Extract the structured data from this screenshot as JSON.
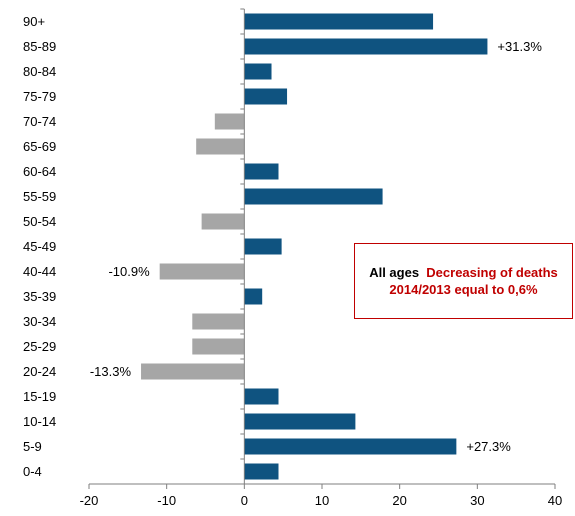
{
  "chart_data": {
    "type": "bar",
    "orientation": "horizontal",
    "categories": [
      "90+",
      "85-89",
      "80-84",
      "75-79",
      "70-74",
      "65-69",
      "60-64",
      "55-59",
      "50-54",
      "45-49",
      "40-44",
      "35-39",
      "30-34",
      "25-29",
      "20-24",
      "15-19",
      "10-14",
      "5-9",
      "0-4"
    ],
    "values": [
      24.3,
      31.3,
      3.5,
      5.5,
      -3.8,
      -6.2,
      4.4,
      17.8,
      -5.5,
      4.8,
      -10.9,
      2.3,
      -6.7,
      -6.7,
      -13.3,
      4.4,
      14.3,
      27.3,
      4.4
    ],
    "xlim": [
      -20,
      40
    ],
    "xticks": [
      -20,
      -10,
      0,
      10,
      20,
      30,
      40
    ],
    "colors": {
      "positive": "#0f5380",
      "negative": "#a6a6a6"
    },
    "data_labels": [
      {
        "category": "85-89",
        "text": "+31.3%"
      },
      {
        "category": "40-44",
        "text": "-10.9%"
      },
      {
        "category": "20-24",
        "text": "-13.3%"
      },
      {
        "category": "5-9",
        "text": "+27.3%"
      }
    ],
    "grid": false,
    "legend": "none"
  },
  "annotation": {
    "lead": "All ages",
    "body": "Decreasing of deaths 2014/2013 equal to 0,6%",
    "border_color": "#c00000",
    "text_color": "#c00000"
  }
}
